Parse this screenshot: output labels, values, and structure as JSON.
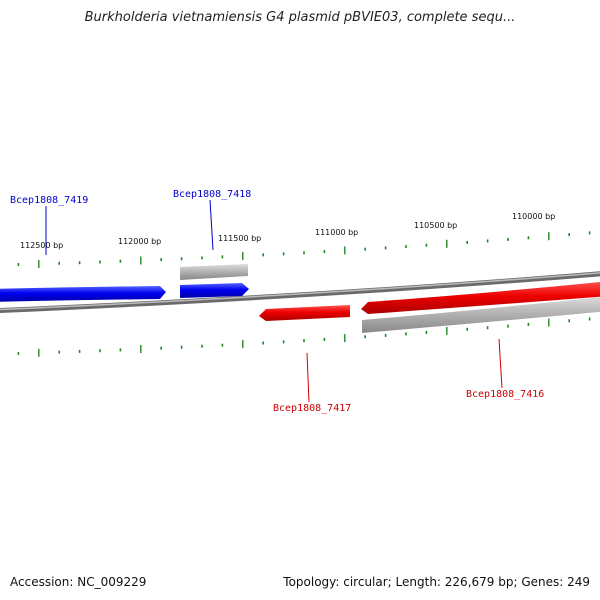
{
  "title": "Burkholderia vietnamiensis G4 plasmid pBVIE03, complete sequ...",
  "footer": {
    "accession": "Accession: NC_009229",
    "summary": "Topology: circular; Length: 226,679 bp; Genes: 249"
  },
  "ruler": {
    "labels": [
      "112500 bp",
      "112000 bp",
      "111500 bp",
      "111000 bp",
      "110500 bp",
      "110000 bp"
    ]
  },
  "genes": [
    {
      "id": "Bcep1808_7419",
      "strand": "+",
      "color": "#0000dd"
    },
    {
      "id": "Bcep1808_7418",
      "strand": "+",
      "color": "#0000dd"
    },
    {
      "id": "Bcep1808_7417",
      "strand": "-",
      "color": "#dd0000"
    },
    {
      "id": "Bcep1808_7416",
      "strand": "-",
      "color": "#dd0000"
    }
  ],
  "colors": {
    "plus_strand": "#0000ee",
    "minus_strand": "#ee0000",
    "tick": "#228822",
    "backbone": "#888888",
    "shadow_feature": "#a8a8a8"
  }
}
